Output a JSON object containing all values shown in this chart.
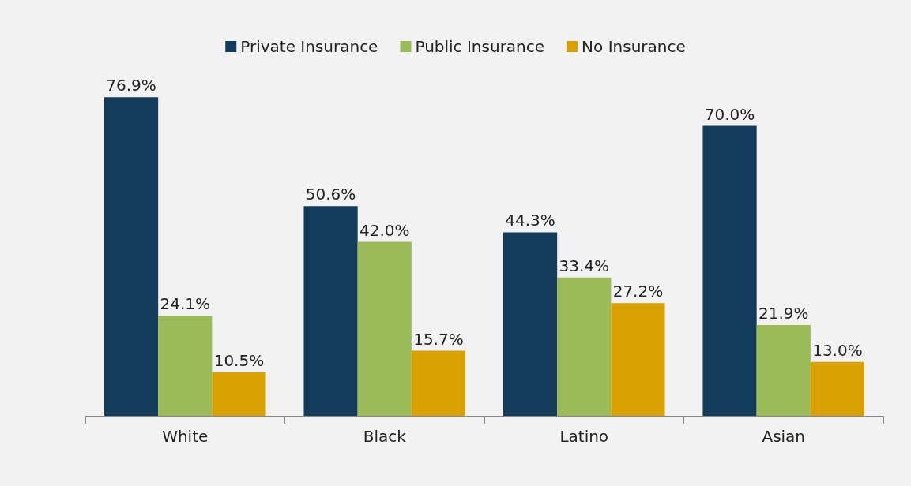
{
  "chart_data": {
    "type": "bar",
    "categories": [
      "White",
      "Black",
      "Latino",
      "Asian"
    ],
    "series": [
      {
        "name": "Private Insurance",
        "color": "#133c5a",
        "values": [
          76.9,
          50.6,
          44.3,
          70.0
        ],
        "value_labels": [
          "76.9%",
          "50.6%",
          "44.3%",
          "70.0%"
        ]
      },
      {
        "name": "Public Insurance",
        "color": "#9bbb59",
        "values": [
          24.1,
          42.0,
          33.4,
          21.9
        ],
        "value_labels": [
          "24.1%",
          "42.0%",
          "33.4%",
          "21.9%"
        ]
      },
      {
        "name": "No Insurance",
        "color": "#d9a100",
        "values": [
          10.5,
          15.7,
          27.2,
          13.0
        ],
        "value_labels": [
          "10.5%",
          "15.7%",
          "27.2%",
          "13.0%"
        ]
      }
    ],
    "legend": "top"
  }
}
